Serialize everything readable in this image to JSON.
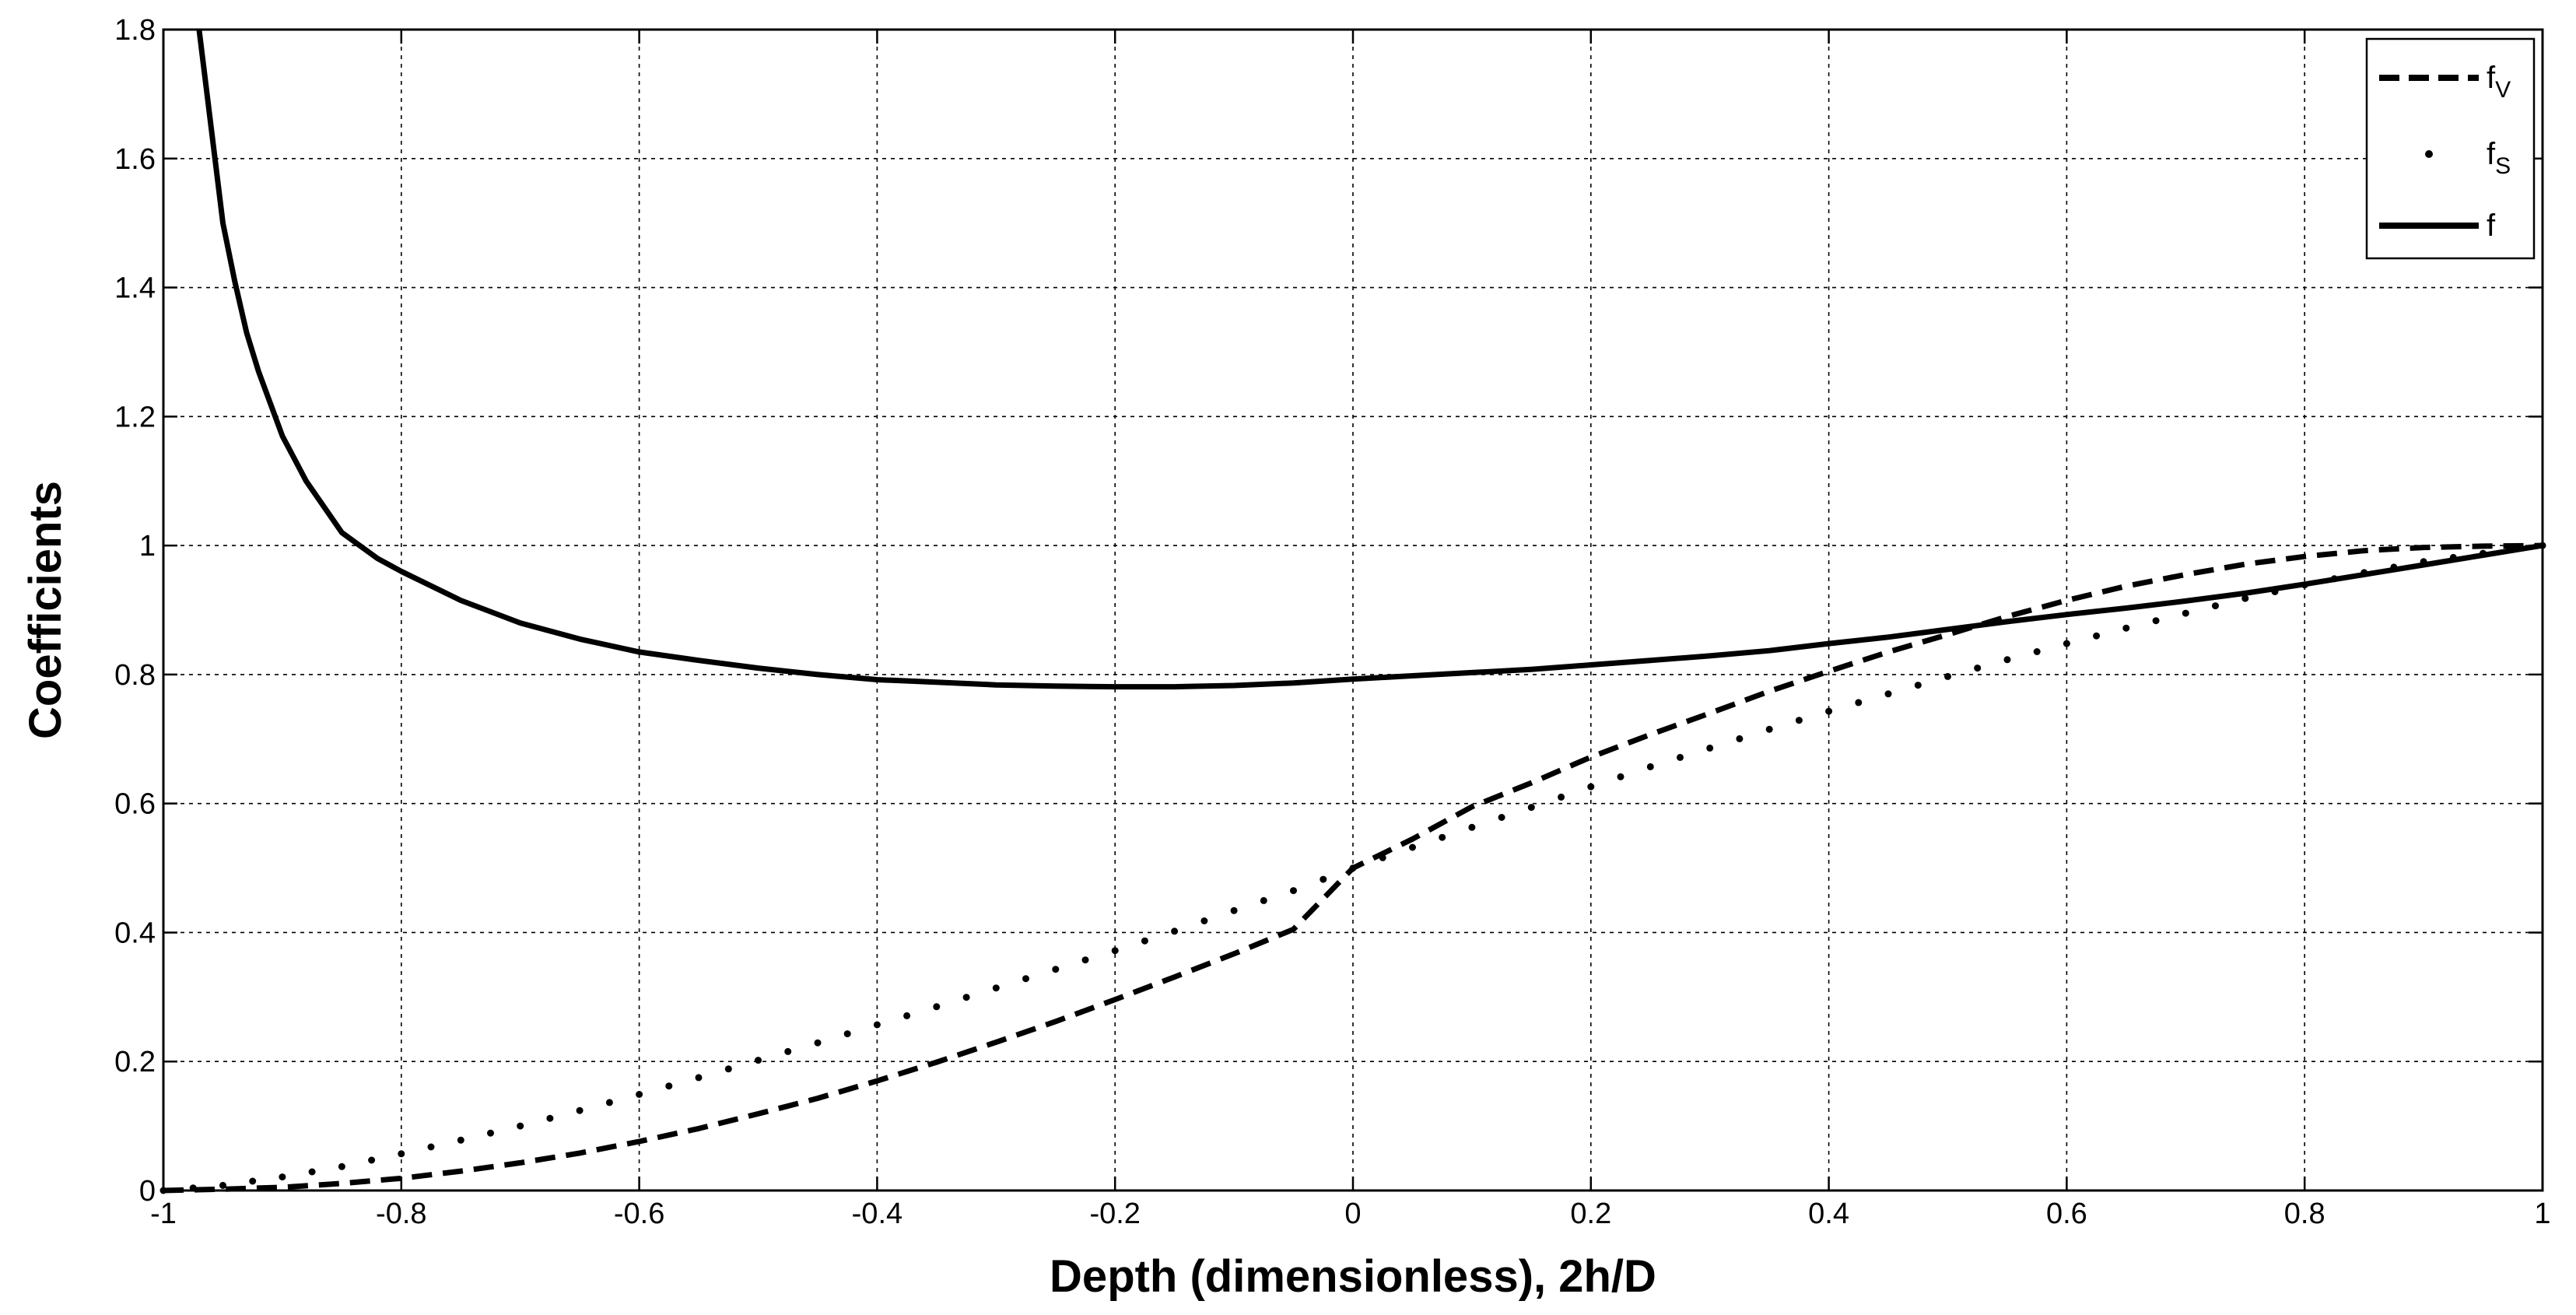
{
  "chart_data": {
    "type": "line",
    "title": "",
    "xlabel": "Depth (dimensionless), 2h/D",
    "ylabel": "Coefficients",
    "xlim": [
      -1,
      1
    ],
    "ylim": [
      0,
      1.8
    ],
    "xticks": [
      -1,
      -0.8,
      -0.6,
      -0.4,
      -0.2,
      0,
      0.2,
      0.4,
      0.6,
      0.8,
      1
    ],
    "yticks": [
      0,
      0.2,
      0.4,
      0.6,
      0.8,
      1,
      1.2,
      1.4,
      1.6,
      1.8
    ],
    "xtick_labels": [
      "-1",
      "-0.8",
      "-0.6",
      "-0.4",
      "-0.2",
      "0",
      "0.2",
      "0.4",
      "0.6",
      "0.8",
      "1"
    ],
    "ytick_labels": [
      "0",
      "0.2",
      "0.4",
      "0.6",
      "0.8",
      "1",
      "1.2",
      "1.4",
      "1.6",
      "1.8"
    ],
    "grid": true,
    "grid_style": "dotted",
    "legend_position": "top-right",
    "series": [
      {
        "name": "fV",
        "label_main": "f",
        "label_sub": "V",
        "style": "dashed",
        "color": "#000000",
        "x": [
          -1,
          -0.95,
          -0.9,
          -0.85,
          -0.8,
          -0.75,
          -0.7,
          -0.65,
          -0.6,
          -0.55,
          -0.5,
          -0.45,
          -0.4,
          -0.35,
          -0.3,
          -0.25,
          -0.2,
          -0.15,
          -0.1,
          -0.05,
          0,
          0.05,
          0.1,
          0.15,
          0.2,
          0.25,
          0.3,
          0.35,
          0.4,
          0.45,
          0.5,
          0.55,
          0.6,
          0.65,
          0.7,
          0.75,
          0.8,
          0.85,
          0.9,
          0.95,
          1
        ],
        "y": [
          0,
          0.002,
          0.005,
          0.011,
          0.019,
          0.03,
          0.043,
          0.058,
          0.076,
          0.096,
          0.119,
          0.143,
          0.17,
          0.199,
          0.23,
          0.262,
          0.296,
          0.331,
          0.367,
          0.405,
          0.5,
          0.545,
          0.595,
          0.632,
          0.672,
          0.707,
          0.74,
          0.774,
          0.805,
          0.835,
          0.862,
          0.89,
          0.915,
          0.937,
          0.955,
          0.971,
          0.983,
          0.992,
          0.997,
          0.999,
          1
        ]
      },
      {
        "name": "fS",
        "label_main": "f",
        "label_sub": "S",
        "style": "dotted",
        "color": "#000000",
        "x": [
          -1,
          -0.95,
          -0.9,
          -0.85,
          -0.8,
          -0.75,
          -0.7,
          -0.65,
          -0.6,
          -0.55,
          -0.5,
          -0.45,
          -0.4,
          -0.35,
          -0.3,
          -0.25,
          -0.2,
          -0.15,
          -0.1,
          -0.05,
          0,
          0.05,
          0.1,
          0.15,
          0.2,
          0.25,
          0.3,
          0.35,
          0.4,
          0.45,
          0.5,
          0.55,
          0.6,
          0.65,
          0.7,
          0.75,
          0.8,
          0.85,
          0.9,
          0.95,
          1
        ],
        "y": [
          0,
          0.008,
          0.021,
          0.037,
          0.057,
          0.078,
          0.1,
          0.124,
          0.149,
          0.175,
          0.202,
          0.229,
          0.257,
          0.285,
          0.314,
          0.343,
          0.372,
          0.402,
          0.434,
          0.465,
          0.5,
          0.532,
          0.563,
          0.594,
          0.626,
          0.657,
          0.686,
          0.715,
          0.743,
          0.77,
          0.797,
          0.823,
          0.848,
          0.872,
          0.895,
          0.918,
          0.939,
          0.958,
          0.975,
          0.988,
          1
        ]
      },
      {
        "name": "f",
        "label_main": "f",
        "label_sub": "",
        "style": "solid",
        "color": "#000000",
        "x": [
          -0.97,
          -0.96,
          -0.95,
          -0.94,
          -0.93,
          -0.92,
          -0.9,
          -0.88,
          -0.85,
          -0.82,
          -0.8,
          -0.75,
          -0.7,
          -0.65,
          -0.6,
          -0.55,
          -0.5,
          -0.45,
          -0.4,
          -0.35,
          -0.3,
          -0.25,
          -0.2,
          -0.15,
          -0.1,
          -0.05,
          0,
          0.05,
          0.1,
          0.15,
          0.2,
          0.25,
          0.3,
          0.35,
          0.4,
          0.45,
          0.5,
          0.55,
          0.6,
          0.65,
          0.7,
          0.75,
          0.8,
          0.85,
          0.9,
          0.95,
          1
        ],
        "y": [
          1.8,
          1.65,
          1.5,
          1.41,
          1.33,
          1.27,
          1.17,
          1.1,
          1.02,
          0.98,
          0.96,
          0.915,
          0.88,
          0.855,
          0.835,
          0.822,
          0.81,
          0.8,
          0.792,
          0.788,
          0.784,
          0.782,
          0.781,
          0.781,
          0.783,
          0.787,
          0.793,
          0.798,
          0.803,
          0.808,
          0.815,
          0.822,
          0.829,
          0.837,
          0.848,
          0.858,
          0.87,
          0.882,
          0.893,
          0.903,
          0.914,
          0.926,
          0.94,
          0.955,
          0.97,
          0.985,
          1
        ]
      }
    ]
  }
}
